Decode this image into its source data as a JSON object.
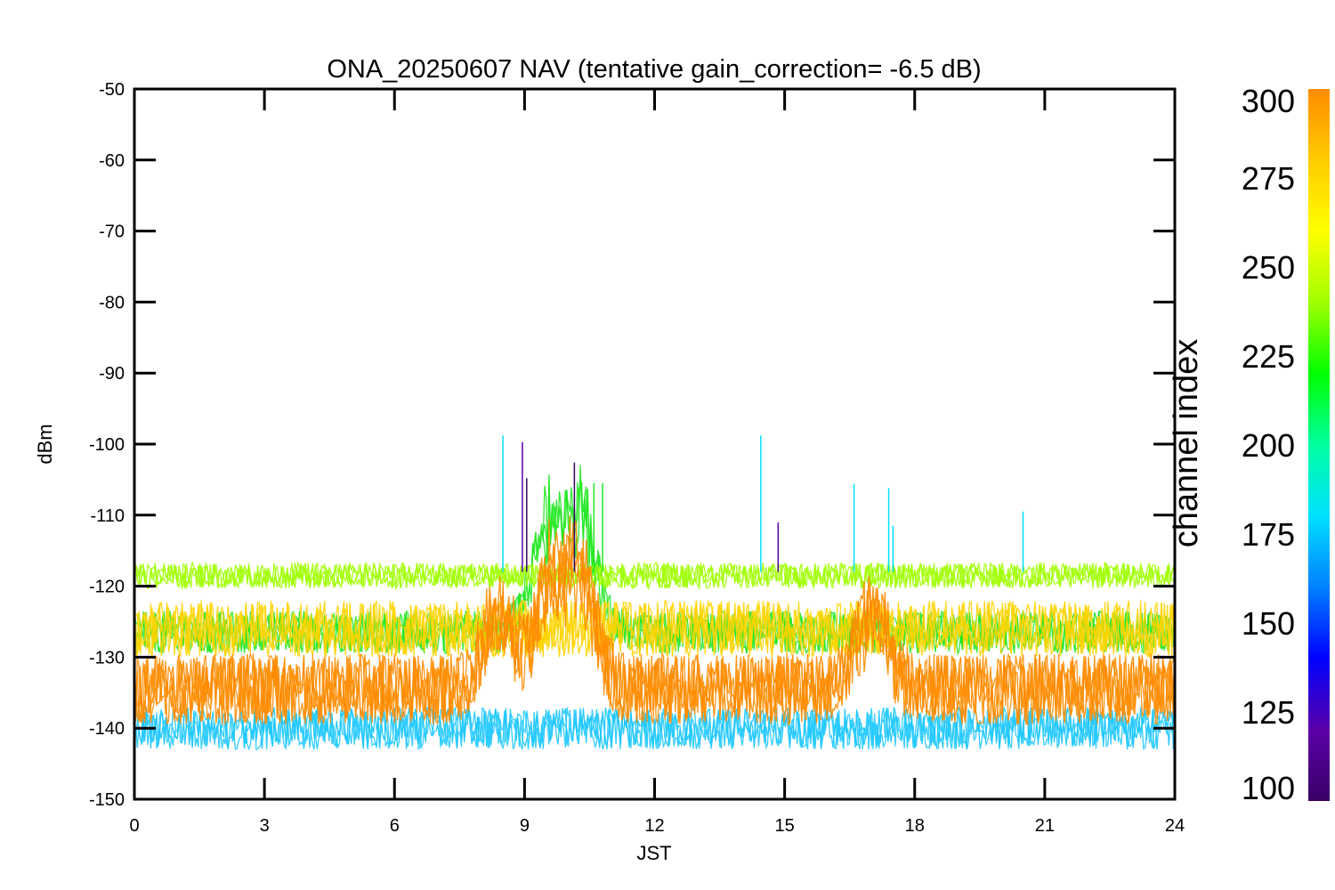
{
  "chart_data": {
    "type": "line",
    "title": "ONA_20250607 NAV (tentative gain_correction= -6.5 dB)",
    "xlabel": "JST",
    "ylabel": "dBm",
    "xlim": [
      0,
      24
    ],
    "ylim": [
      -150,
      -50
    ],
    "x_ticks": [
      0,
      3,
      6,
      9,
      12,
      15,
      18,
      21,
      24
    ],
    "y_ticks": [
      -50,
      -60,
      -70,
      -80,
      -90,
      -100,
      -110,
      -120,
      -130,
      -140,
      -150
    ],
    "grid": false,
    "colorbar": {
      "label": "channel index",
      "range": [
        100,
        300
      ],
      "ticks": [
        300,
        275,
        250,
        225,
        200,
        175,
        150,
        125,
        100
      ],
      "colormap": [
        "#3b0066",
        "#5a00a8",
        "#0000ff",
        "#0080ff",
        "#00e0ff",
        "#00ffa0",
        "#00ff00",
        "#a0ff00",
        "#ffff00",
        "#ffcc00",
        "#ff8c00"
      ]
    },
    "series": [
      {
        "channel_range": [
          280,
          300
        ],
        "color": "#ff8c00",
        "base_dBm": -134.5,
        "spread_dB": 5.0,
        "bumps": [
          {
            "x": 8.4,
            "peak_dBm": -121
          },
          {
            "x": 9.6,
            "peak_dBm": -117
          },
          {
            "x": 10.3,
            "peak_dBm": -115
          },
          {
            "x": 17.0,
            "peak_dBm": -120
          }
        ]
      },
      {
        "channel_range": [
          265,
          280
        ],
        "color": "#ffd400",
        "base_dBm": -126,
        "spread_dB": 4.0
      },
      {
        "channel_range": [
          250,
          265
        ],
        "color": "#a0ff00",
        "base_dBm": -118.5,
        "spread_dB": 1.8
      },
      {
        "channel_range": [
          225,
          250
        ],
        "color": "#22e822",
        "base_dBm": -126.5,
        "spread_dB": 3.0,
        "bumps": [
          {
            "x": 9.5,
            "peak_dBm": -108
          },
          {
            "x": 10.3,
            "peak_dBm": -106
          }
        ]
      },
      {
        "channel_range": [
          100,
          225
        ],
        "color": "#1ec8ff",
        "base_dBm": -140,
        "spread_dB": 3.0
      }
    ],
    "spikes": [
      {
        "x": 8.5,
        "dBm": -98.8,
        "color": "#00e0ff"
      },
      {
        "x": 8.95,
        "dBm": -99.7,
        "color": "#5a00a8"
      },
      {
        "x": 9.05,
        "dBm": -104.8,
        "color": "#3b0066"
      },
      {
        "x": 10.15,
        "dBm": -102.6,
        "color": "#3b0066"
      },
      {
        "x": 10.6,
        "dBm": -105.5,
        "color": "#22e822"
      },
      {
        "x": 10.8,
        "dBm": -105.5,
        "color": "#22e822"
      },
      {
        "x": 14.45,
        "dBm": -98.8,
        "color": "#00e0ff"
      },
      {
        "x": 14.85,
        "dBm": -111,
        "color": "#5a00a8"
      },
      {
        "x": 16.6,
        "dBm": -105.6,
        "color": "#00e0ff"
      },
      {
        "x": 17.4,
        "dBm": -106.2,
        "color": "#00e0ff"
      },
      {
        "x": 17.5,
        "dBm": -111.5,
        "color": "#00e0ff"
      },
      {
        "x": 20.5,
        "dBm": -109.5,
        "color": "#00e0ff"
      }
    ]
  }
}
